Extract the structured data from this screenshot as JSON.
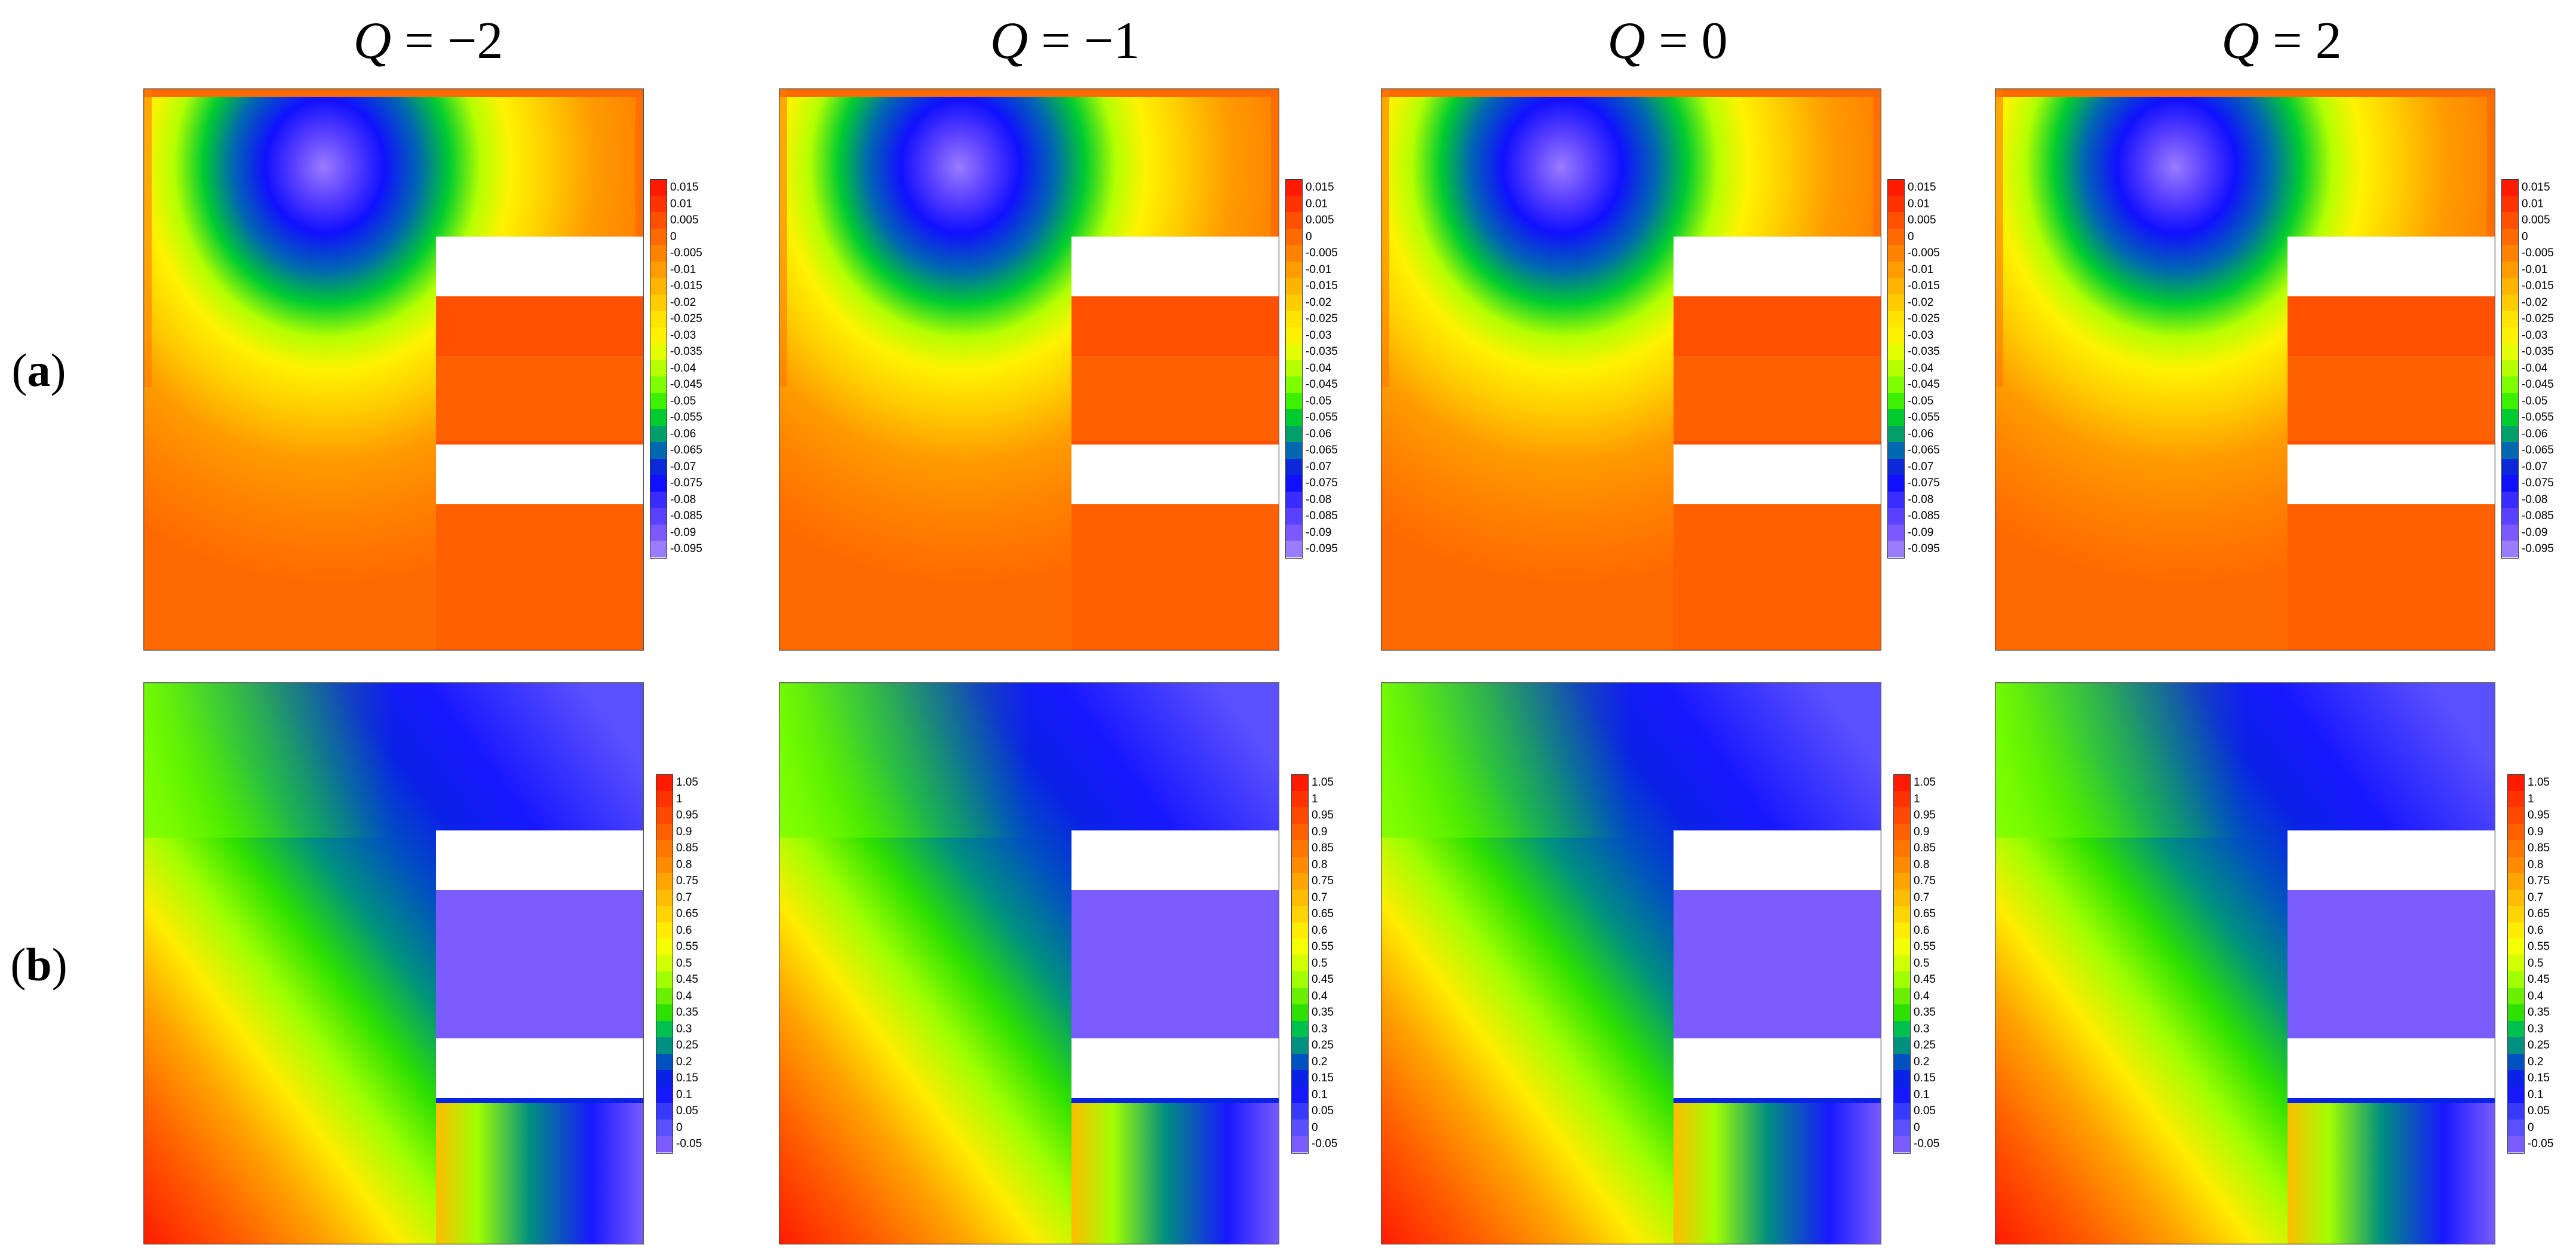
{
  "column_titles": [
    {
      "q": "Q",
      "rest": " = −2"
    },
    {
      "q": "Q",
      "rest": " = −1"
    },
    {
      "q": "Q",
      "rest": " = 0"
    },
    {
      "q": "Q",
      "rest": " = 2"
    }
  ],
  "row_labels": [
    {
      "open": "(",
      "letter": "a",
      "close": ")"
    },
    {
      "open": "(",
      "letter": "b",
      "close": ")"
    }
  ],
  "legend_a": {
    "labels": [
      "0.015",
      "0.01",
      "0.005",
      "0",
      "-0.005",
      "-0.01",
      "-0.015",
      "-0.02",
      "-0.025",
      "-0.03",
      "-0.035",
      "-0.04",
      "-0.045",
      "-0.05",
      "-0.055",
      "-0.06",
      "-0.065",
      "-0.07",
      "-0.075",
      "-0.08",
      "-0.085",
      "-0.09",
      "-0.095"
    ],
    "colors": [
      "#ff1a00",
      "#ff3300",
      "#ff5000",
      "#ff6a00",
      "#ff8200",
      "#ff9c00",
      "#ffb400",
      "#ffcc00",
      "#ffe400",
      "#fff200",
      "#e6ff00",
      "#b4ff00",
      "#7dff00",
      "#3cf000",
      "#00cc30",
      "#009f6a",
      "#0068b0",
      "#0a28d8",
      "#1010ff",
      "#3a2cff",
      "#5a40ff",
      "#7a5aff",
      "#9a7cff"
    ]
  },
  "legend_b": {
    "labels": [
      "1.05",
      "1",
      "0.95",
      "0.9",
      "0.85",
      "0.8",
      "0.75",
      "0.7",
      "0.65",
      "0.6",
      "0.55",
      "0.5",
      "0.45",
      "0.4",
      "0.35",
      "0.3",
      "0.25",
      "0.2",
      "0.15",
      "0.1",
      "0.05",
      "0",
      "-0.05"
    ],
    "colors": [
      "#ff1a00",
      "#ff3300",
      "#ff4a00",
      "#ff6000",
      "#ff7600",
      "#ff8c00",
      "#ffa400",
      "#ffbc00",
      "#ffd400",
      "#ffec00",
      "#f4ff00",
      "#d0ff00",
      "#a0ff00",
      "#68f000",
      "#2ee000",
      "#00c050",
      "#009080",
      "#0050c0",
      "#0a22e6",
      "#1818ff",
      "#3a3aff",
      "#5a50ff",
      "#7a5cff"
    ]
  }
}
